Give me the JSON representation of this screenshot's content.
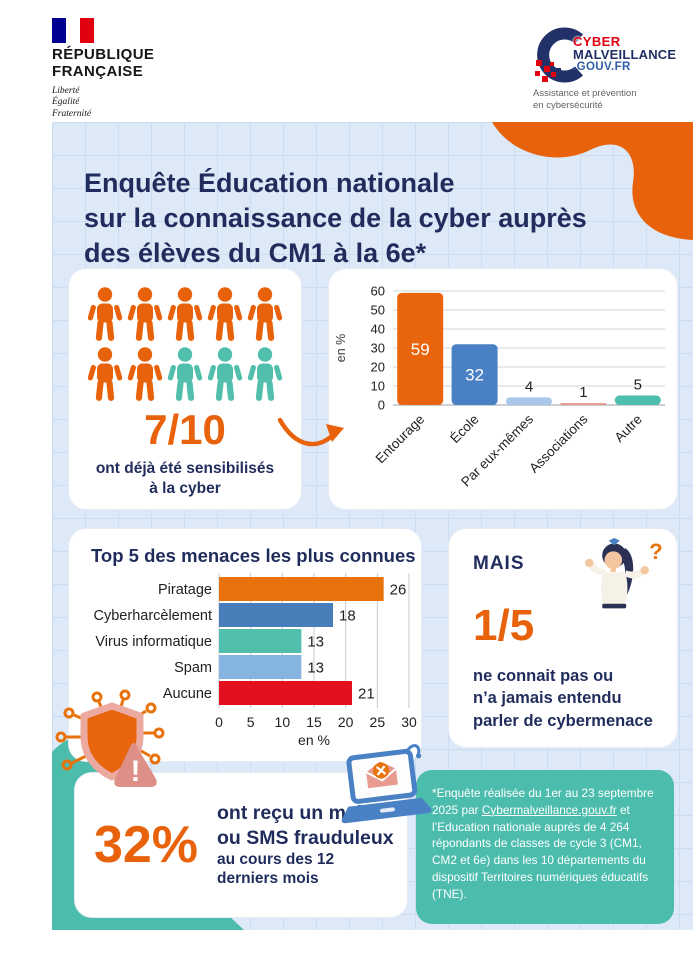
{
  "colors": {
    "orange": "#E8620C",
    "navy": "#1F2C5C",
    "teal": "#4CBCAC",
    "red": "#E3101F",
    "panel_bg": "#DEE9F7"
  },
  "header": {
    "rf": {
      "name_line1": "RÉPUBLIQUE",
      "name_line2": "FRANÇAISE",
      "motto": [
        "Liberté",
        "Égalité",
        "Fraternité"
      ]
    },
    "cyber": {
      "word1": "CYBER",
      "word2": "MALVEILLANCE",
      "word3": ".GOUV.FR",
      "tagline_line1": "Assistance et prévention",
      "tagline_line2": "en cybersécurité"
    }
  },
  "title": {
    "line1": "Enquête Éducation nationale",
    "line2": "sur la connaissance de la cyber auprès",
    "line3": "des élèves du CM1 à la 6e*"
  },
  "sensitized": {
    "people_total": 10,
    "people_highlighted": 7,
    "highlight_color": "#E8620C",
    "other_color": "#52BFAD",
    "value": "7/10",
    "caption_line1": "ont déjà été sensibilisés",
    "caption_line2": "à la cyber"
  },
  "chart_data": [
    {
      "type": "bar",
      "orientation": "vertical",
      "title": "",
      "categories": [
        "Entourage",
        "École",
        "Par eux-mêmes",
        "Associations",
        "Autre"
      ],
      "values": [
        59,
        32,
        4,
        1,
        5
      ],
      "bar_colors": [
        "#E8650D",
        "#4A80C4",
        "#A8C7EA",
        "#E8958A",
        "#4FBFAD"
      ],
      "xlabel": "",
      "ylabel": "en %",
      "ylim": [
        0,
        60
      ],
      "yticks": [
        0,
        10,
        20,
        30,
        40,
        50,
        60
      ],
      "grid": true,
      "value_labels": true,
      "legend": false
    },
    {
      "type": "bar",
      "orientation": "horizontal",
      "title": "Top 5 des menaces les plus connues",
      "categories": [
        "Piratage",
        "Cyberharcèlement",
        "Virus informatique",
        "Spam",
        "Aucune"
      ],
      "values": [
        26,
        18,
        13,
        13,
        21
      ],
      "bar_colors": [
        "#E8720C",
        "#4A7EBB",
        "#52BFAD",
        "#85B4E0",
        "#E3101F"
      ],
      "xlabel": "en %",
      "ylabel": "",
      "xlim": [
        0,
        30
      ],
      "xticks": [
        0,
        5,
        10,
        15,
        20,
        25,
        30
      ],
      "grid": true,
      "value_labels": true,
      "legend": false
    }
  ],
  "mais": {
    "label": "MAIS",
    "value": "1/5",
    "line1": "ne connait pas ou",
    "line2": "n’a jamais entendu",
    "line3": "parler de cybermenace",
    "question_mark": "?"
  },
  "fraud": {
    "value": "32%",
    "bold_line1": "ont reçu un mail",
    "bold_line2": "ou SMS frauduleux",
    "small_line1": "au cours des 12",
    "small_line2": "derniers mois"
  },
  "footnote": {
    "text_before": "*Enquête réalisée du 1er au 23 septembre 2025 par ",
    "link": "Cybermalveillance.gouv.fr",
    "text_after": " et l’Education nationale auprès de 4 264 répondants de classes de cycle 3 (CM1, CM2 et 6e) dans les 10 départements du dispositif Territoires numériques éducatifs (TNE)."
  }
}
